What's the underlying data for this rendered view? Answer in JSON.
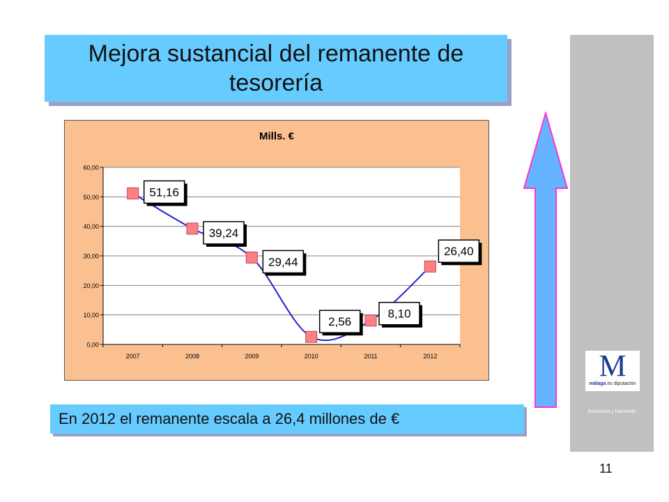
{
  "slide": {
    "title": "Mejora sustancial del remanente de tesorería",
    "footer_text": "En 2012 el remanente escala a 26,4 millones de €",
    "page_number": "11",
    "logo": {
      "letter": "M",
      "brand_bold": "málaga",
      "brand_rest": ".es diputación"
    },
    "side_caption": "Economía y Hacienda",
    "colors": {
      "title_bg": "#66ccff",
      "panel_bg": "#c0c0c0",
      "chart_bg": "#fac090",
      "line": "#2222cc",
      "marker": "#ff8080",
      "arrow_fill": "#66b3ff",
      "arrow_stroke": "#ff33cc"
    }
  },
  "chart_data": {
    "type": "line",
    "title": "Mills. €",
    "categories": [
      "2007",
      "2008",
      "2009",
      "2010",
      "2011",
      "2012"
    ],
    "values": [
      51.16,
      39.24,
      29.44,
      2.56,
      8.1,
      26.4
    ],
    "data_labels": [
      "51,16",
      "39,24",
      "29,44",
      "2,56",
      "8,10",
      "26,40"
    ],
    "y_ticks": [
      "0,00",
      "10,00",
      "20,00",
      "30,00",
      "40,00",
      "50,00",
      "60,00"
    ],
    "ylim": [
      0,
      60
    ],
    "grid": true,
    "legend": "none",
    "smooth": true
  }
}
